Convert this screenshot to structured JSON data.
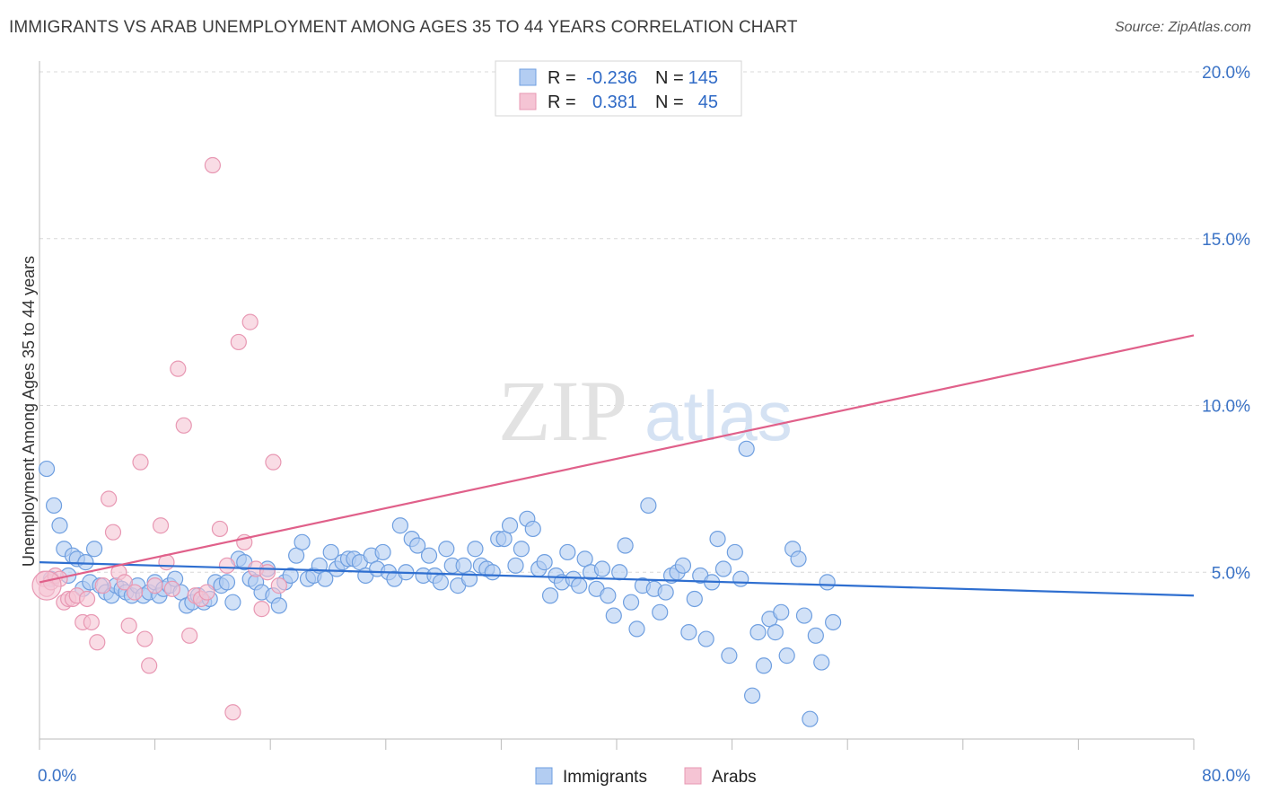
{
  "title": "IMMIGRANTS VS ARAB UNEMPLOYMENT AMONG AGES 35 TO 44 YEARS CORRELATION CHART",
  "source": "Source: ZipAtlas.com",
  "watermark": {
    "zip": "ZIP",
    "atlas": "atlas"
  },
  "colors": {
    "blue_fill": "#b3cdf2",
    "blue_stroke": "#6f9fe0",
    "blue_line": "#2f6fd0",
    "pink_fill": "#f5c4d4",
    "pink_stroke": "#e898b3",
    "pink_line": "#e0608a",
    "axis_text": "#3b73c6",
    "grid": "#d8d8d8"
  },
  "legend": {
    "rows": [
      {
        "r_label": "R =",
        "r_value": "-0.236",
        "n_label": "N =",
        "n_value": "145"
      },
      {
        "r_label": "R =",
        "r_value": "0.381",
        "n_label": "N =",
        "n_value": "45"
      }
    ]
  },
  "bottom_legend": {
    "series1": "Immigrants",
    "series2": "Arabs"
  },
  "chart_data": {
    "type": "scatter",
    "xlabel": "",
    "ylabel": "Unemployment Among Ages 35 to 44 years",
    "xlim": [
      0,
      80
    ],
    "ylim": [
      0,
      20
    ],
    "x_tick_labels": [
      "0.0%",
      "80.0%"
    ],
    "y_ticks": [
      5,
      10,
      15,
      20
    ],
    "y_tick_labels": [
      "5.0%",
      "10.0%",
      "15.0%",
      "20.0%"
    ],
    "grid": true,
    "legend_position": "top-center",
    "series": [
      {
        "name": "Immigrants",
        "trend": [
          [
            0,
            5.3
          ],
          [
            80,
            4.3
          ]
        ],
        "points": [
          [
            0.5,
            8.1
          ],
          [
            0.8,
            4.8
          ],
          [
            1.0,
            7.0
          ],
          [
            1.4,
            6.4
          ],
          [
            1.7,
            5.7
          ],
          [
            2.0,
            4.9
          ],
          [
            2.3,
            5.5
          ],
          [
            2.6,
            5.4
          ],
          [
            3.0,
            4.5
          ],
          [
            3.2,
            5.3
          ],
          [
            3.5,
            4.7
          ],
          [
            3.8,
            5.7
          ],
          [
            4.2,
            4.6
          ],
          [
            4.6,
            4.4
          ],
          [
            5.0,
            4.3
          ],
          [
            5.3,
            4.6
          ],
          [
            5.7,
            4.5
          ],
          [
            6.0,
            4.4
          ],
          [
            6.4,
            4.3
          ],
          [
            6.8,
            4.6
          ],
          [
            7.2,
            4.3
          ],
          [
            7.6,
            4.4
          ],
          [
            8.0,
            4.7
          ],
          [
            8.3,
            4.3
          ],
          [
            8.6,
            4.5
          ],
          [
            9.0,
            4.6
          ],
          [
            9.4,
            4.8
          ],
          [
            9.8,
            4.4
          ],
          [
            10.2,
            4.0
          ],
          [
            10.6,
            4.1
          ],
          [
            11.0,
            4.3
          ],
          [
            11.4,
            4.1
          ],
          [
            11.8,
            4.2
          ],
          [
            12.2,
            4.7
          ],
          [
            12.6,
            4.6
          ],
          [
            13.0,
            4.7
          ],
          [
            13.4,
            4.1
          ],
          [
            13.8,
            5.4
          ],
          [
            14.2,
            5.3
          ],
          [
            14.6,
            4.8
          ],
          [
            15.0,
            4.7
          ],
          [
            15.4,
            4.4
          ],
          [
            15.8,
            5.1
          ],
          [
            16.2,
            4.3
          ],
          [
            16.6,
            4.0
          ],
          [
            17.0,
            4.7
          ],
          [
            17.4,
            4.9
          ],
          [
            17.8,
            5.5
          ],
          [
            18.2,
            5.9
          ],
          [
            18.6,
            4.8
          ],
          [
            19.0,
            4.9
          ],
          [
            19.4,
            5.2
          ],
          [
            19.8,
            4.8
          ],
          [
            20.2,
            5.6
          ],
          [
            20.6,
            5.1
          ],
          [
            21.0,
            5.3
          ],
          [
            21.4,
            5.4
          ],
          [
            21.8,
            5.4
          ],
          [
            22.2,
            5.3
          ],
          [
            22.6,
            4.9
          ],
          [
            23.0,
            5.5
          ],
          [
            23.4,
            5.1
          ],
          [
            23.8,
            5.6
          ],
          [
            24.2,
            5.0
          ],
          [
            24.6,
            4.8
          ],
          [
            25.0,
            6.4
          ],
          [
            25.4,
            5.0
          ],
          [
            25.8,
            6.0
          ],
          [
            26.2,
            5.8
          ],
          [
            26.6,
            4.9
          ],
          [
            27.0,
            5.5
          ],
          [
            27.4,
            4.9
          ],
          [
            27.8,
            4.7
          ],
          [
            28.2,
            5.7
          ],
          [
            28.6,
            5.2
          ],
          [
            29.0,
            4.6
          ],
          [
            29.4,
            5.2
          ],
          [
            29.8,
            4.8
          ],
          [
            30.2,
            5.7
          ],
          [
            30.6,
            5.2
          ],
          [
            31.0,
            5.1
          ],
          [
            31.4,
            5.0
          ],
          [
            31.8,
            6.0
          ],
          [
            32.2,
            6.0
          ],
          [
            32.6,
            6.4
          ],
          [
            33.0,
            5.2
          ],
          [
            33.4,
            5.7
          ],
          [
            33.8,
            6.6
          ],
          [
            34.2,
            6.3
          ],
          [
            34.6,
            5.1
          ],
          [
            35.0,
            5.3
          ],
          [
            35.4,
            4.3
          ],
          [
            35.8,
            4.9
          ],
          [
            36.2,
            4.7
          ],
          [
            36.6,
            5.6
          ],
          [
            37.0,
            4.8
          ],
          [
            37.4,
            4.6
          ],
          [
            37.8,
            5.4
          ],
          [
            38.2,
            5.0
          ],
          [
            38.6,
            4.5
          ],
          [
            39.0,
            5.1
          ],
          [
            39.4,
            4.3
          ],
          [
            39.8,
            3.7
          ],
          [
            40.2,
            5.0
          ],
          [
            40.6,
            5.8
          ],
          [
            41.0,
            4.1
          ],
          [
            41.4,
            3.3
          ],
          [
            41.8,
            4.6
          ],
          [
            42.2,
            7.0
          ],
          [
            42.6,
            4.5
          ],
          [
            43.0,
            3.8
          ],
          [
            43.4,
            4.4
          ],
          [
            43.8,
            4.9
          ],
          [
            44.2,
            5.0
          ],
          [
            44.6,
            5.2
          ],
          [
            45.0,
            3.2
          ],
          [
            45.4,
            4.2
          ],
          [
            45.8,
            4.9
          ],
          [
            46.2,
            3.0
          ],
          [
            46.6,
            4.7
          ],
          [
            47.0,
            6.0
          ],
          [
            47.4,
            5.1
          ],
          [
            47.8,
            2.5
          ],
          [
            48.2,
            5.6
          ],
          [
            48.6,
            4.8
          ],
          [
            49.0,
            8.7
          ],
          [
            49.4,
            1.3
          ],
          [
            49.8,
            3.2
          ],
          [
            50.2,
            2.2
          ],
          [
            50.6,
            3.6
          ],
          [
            51.0,
            3.2
          ],
          [
            51.4,
            3.8
          ],
          [
            51.8,
            2.5
          ],
          [
            52.2,
            5.7
          ],
          [
            52.6,
            5.4
          ],
          [
            53.0,
            3.7
          ],
          [
            53.4,
            0.6
          ],
          [
            53.8,
            3.1
          ],
          [
            54.2,
            2.3
          ],
          [
            54.6,
            4.7
          ],
          [
            55.0,
            3.5
          ]
        ]
      },
      {
        "name": "Arabs",
        "trend": [
          [
            0,
            4.7
          ],
          [
            80,
            12.1
          ]
        ],
        "points": [
          [
            0.3,
            4.8
          ],
          [
            0.5,
            4.5
          ],
          [
            0.8,
            4.7
          ],
          [
            1.1,
            4.9
          ],
          [
            1.4,
            4.8
          ],
          [
            1.7,
            4.1
          ],
          [
            2.0,
            4.2
          ],
          [
            2.3,
            4.2
          ],
          [
            2.6,
            4.3
          ],
          [
            3.0,
            3.5
          ],
          [
            3.3,
            4.2
          ],
          [
            3.6,
            3.5
          ],
          [
            4.0,
            2.9
          ],
          [
            4.4,
            4.6
          ],
          [
            4.8,
            7.2
          ],
          [
            5.1,
            6.2
          ],
          [
            5.5,
            5.0
          ],
          [
            5.9,
            4.7
          ],
          [
            6.2,
            3.4
          ],
          [
            6.6,
            4.4
          ],
          [
            7.0,
            8.3
          ],
          [
            7.3,
            3.0
          ],
          [
            7.6,
            2.2
          ],
          [
            8.0,
            4.6
          ],
          [
            8.4,
            6.4
          ],
          [
            8.8,
            5.3
          ],
          [
            9.2,
            4.5
          ],
          [
            9.6,
            11.1
          ],
          [
            10.0,
            9.4
          ],
          [
            10.4,
            3.1
          ],
          [
            10.8,
            4.3
          ],
          [
            11.2,
            4.2
          ],
          [
            11.6,
            4.4
          ],
          [
            12.0,
            17.2
          ],
          [
            12.5,
            6.3
          ],
          [
            13.0,
            5.2
          ],
          [
            13.4,
            0.8
          ],
          [
            13.8,
            11.9
          ],
          [
            14.2,
            5.9
          ],
          [
            14.6,
            12.5
          ],
          [
            15.0,
            5.1
          ],
          [
            15.4,
            3.9
          ],
          [
            15.8,
            5.0
          ],
          [
            16.2,
            8.3
          ],
          [
            16.6,
            4.6
          ]
        ]
      }
    ]
  }
}
